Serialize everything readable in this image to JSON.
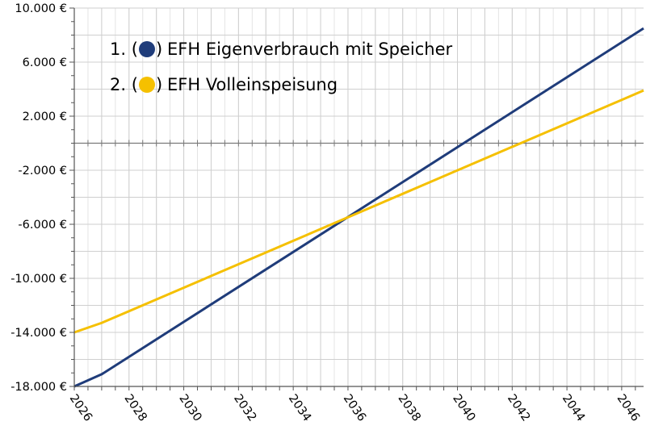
{
  "chart_data": {
    "type": "line",
    "title": "",
    "xlabel": "",
    "ylabel": "",
    "xlim": [
      2026,
      2046.8
    ],
    "ylim": [
      -18000,
      10000
    ],
    "y_ticks": [
      -18000,
      -14000,
      -10000,
      -6000,
      -2000,
      2000,
      6000,
      10000
    ],
    "y_tick_labels": [
      "-18.000 €",
      "-14.000 €",
      "-10.000 €",
      "-6.000 €",
      "-2.000 €",
      "2.000 €",
      "6.000 €",
      "10.000 €"
    ],
    "x_ticks": [
      2026,
      2028,
      2030,
      2032,
      2034,
      2036,
      2038,
      2040,
      2042,
      2044,
      2046
    ],
    "x_tick_labels": [
      "2026",
      "2028",
      "2030",
      "2032",
      "2034",
      "2036",
      "2038",
      "2040",
      "2042",
      "2044",
      "2046"
    ],
    "grid": true,
    "legend_position": "top-left",
    "series": [
      {
        "name": "EFH Eigenverbrauch mit Speicher",
        "legend_prefix": "1. (",
        "legend_suffix": ") ",
        "color": "#1f3c7a",
        "x": [
          2026,
          2027,
          2046.8
        ],
        "values": [
          -18000,
          -17100,
          8500
        ]
      },
      {
        "name": "EFH Volleinspeisung",
        "legend_prefix": "2. (",
        "legend_suffix": ") ",
        "color": "#f5c000",
        "x": [
          2026,
          2027,
          2046.8
        ],
        "values": [
          -14000,
          -13300,
          3900
        ]
      }
    ]
  }
}
